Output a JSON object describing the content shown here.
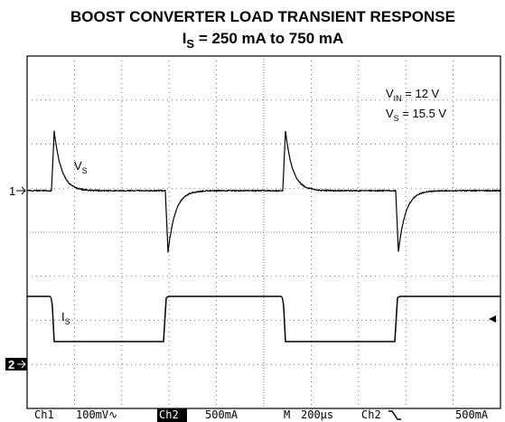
{
  "title": "BOOST CONVERTER LOAD TRANSIENT RESPONSE",
  "subtitle": {
    "main": "I",
    "sub": "S",
    "rest": " = 250 mA to 750 mA"
  },
  "annotations": [
    {
      "main": "V",
      "sub": "IN",
      "rest": " = 12 V"
    },
    {
      "main": "V",
      "sub": "S",
      "rest": " = 15.5 V"
    }
  ],
  "traces": [
    {
      "main": "V",
      "sub": "S"
    },
    {
      "main": "I",
      "sub": "S"
    }
  ],
  "markers": [
    "1",
    "2"
  ],
  "status": [
    "Ch1",
    "100mV∿",
    "Ch2",
    "500mA",
    "M",
    "200µs",
    "Ch2",
    "500mA"
  ]
}
